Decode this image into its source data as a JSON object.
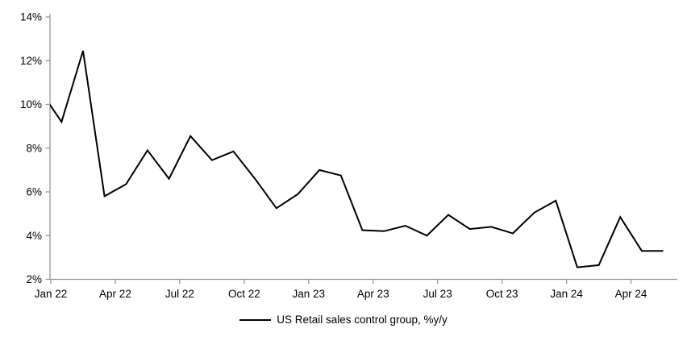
{
  "chart_data": {
    "type": "line",
    "title": "",
    "legend_label": "US Retail sales control group, %y/y",
    "legend_position": "bottom-center",
    "grid": false,
    "line_color": "#000000",
    "axis_color": "#969696",
    "ylim": [
      2,
      14
    ],
    "y_tick_values": [
      14,
      12,
      10,
      8,
      6,
      4,
      2
    ],
    "y_tick_labels": [
      "14%",
      "12%",
      "10%",
      "8%",
      "6%",
      "4%",
      "2%"
    ],
    "x": [
      "Dec 21",
      "Jan 22",
      "Feb 22",
      "Mar 22",
      "Apr 22",
      "May 22",
      "Jun 22",
      "Jul 22",
      "Aug 22",
      "Sep 22",
      "Oct 22",
      "Nov 22",
      "Dec 22",
      "Jan 23",
      "Feb 23",
      "Mar 23",
      "Apr 23",
      "May 23",
      "Jun 23",
      "Jul 23",
      "Aug 23",
      "Sep 23",
      "Oct 23",
      "Nov 23",
      "Dec 23",
      "Jan 24",
      "Feb 24",
      "Mar 24",
      "Apr 24",
      "May 24"
    ],
    "x_tick_indices": [
      1,
      4,
      7,
      10,
      13,
      16,
      19,
      22,
      25,
      28
    ],
    "x_tick_labels": [
      "Jan 22",
      "Apr 22",
      "Jul 22",
      "Oct 22",
      "Jan 23",
      "Apr 23",
      "Jul 23",
      "Oct 23",
      "Jan 24",
      "Apr 24"
    ],
    "series": [
      {
        "name": "US Retail sales control group, %y/y",
        "values": [
          10.65,
          9.2,
          12.45,
          5.8,
          6.35,
          7.9,
          6.6,
          8.55,
          7.45,
          7.85,
          6.6,
          5.25,
          5.9,
          7.0,
          6.75,
          4.25,
          4.2,
          4.45,
          4.0,
          4.95,
          4.3,
          4.4,
          4.1,
          5.05,
          5.6,
          2.55,
          2.65,
          4.85,
          3.3,
          3.3
        ]
      }
    ]
  }
}
